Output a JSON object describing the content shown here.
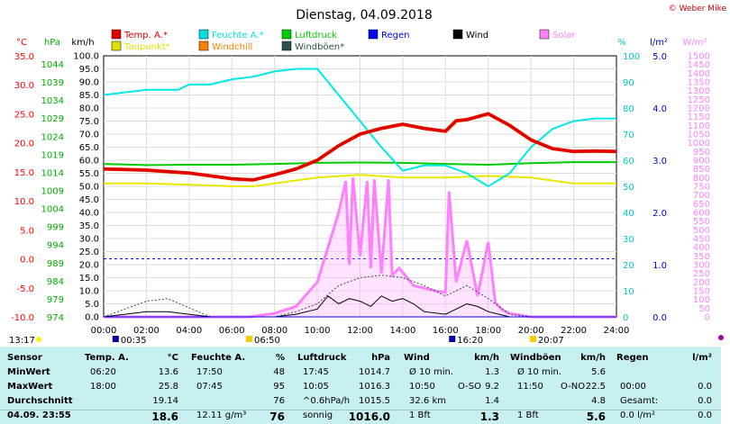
{
  "header": {
    "title": "Dienstag, 04.09.2018",
    "credit": "© Weber Mike"
  },
  "legend": [
    {
      "label": "Temp. A.*",
      "color": "#e00000"
    },
    {
      "label": "Feuchte A.*",
      "color": "#00e0e0"
    },
    {
      "label": "Luftdruck",
      "color": "#00cc00"
    },
    {
      "label": "Regen",
      "color": "#0000ff"
    },
    {
      "label": "Wind",
      "color": "#000000"
    },
    {
      "label": "Solar",
      "color": "#ff80ff"
    },
    {
      "label": "Taupunkt*",
      "color": "#e0e000"
    },
    {
      "label": "Windchill",
      "color": "#ff8000"
    },
    {
      "label": "Windböen*",
      "color": "#305050"
    }
  ],
  "axes": {
    "temp": {
      "unit": "°C",
      "ticks": [
        "35.0",
        "30.0",
        "25.0",
        "20.0",
        "15.0",
        "10.0",
        "5.0",
        "0.0",
        "-5.0",
        "-10.0"
      ],
      "color": "#ff0000"
    },
    "press": {
      "unit": "hPa",
      "ticks": [
        "1044",
        "1039",
        "1034",
        "1029",
        "1024",
        "1019",
        "1014",
        "1009",
        "1004",
        "999",
        "994",
        "989",
        "984",
        "979",
        "974"
      ],
      "color": "#00aa00"
    },
    "wind": {
      "unit": "km/h",
      "ticks": [
        "100.0",
        "95.0",
        "90.0",
        "85.0",
        "80.0",
        "75.0",
        "70.0",
        "65.0",
        "60.0",
        "55.0",
        "50.0",
        "45.0",
        "40.0",
        "35.0",
        "30.0",
        "25.0",
        "20.0",
        "15.0",
        "10.0",
        "5.0",
        "0.0"
      ],
      "color": "#000000"
    },
    "hum": {
      "unit": "%",
      "ticks": [
        "100",
        "90",
        "80",
        "70",
        "60",
        "50",
        "40",
        "30",
        "20",
        "10",
        "0"
      ],
      "color": "#00c8c8"
    },
    "rain": {
      "unit": "l/m²",
      "ticks": [
        "5.0",
        "4.0",
        "3.0",
        "2.0",
        "1.0",
        "0.0"
      ],
      "color": "#0000cc"
    },
    "solar": {
      "unit": "W/m²",
      "ticks": [
        "1500",
        "1450",
        "1400",
        "1350",
        "1300",
        "1250",
        "1200",
        "1150",
        "1100",
        "1050",
        "1000",
        "950",
        "900",
        "850",
        "800",
        "750",
        "700",
        "650",
        "600",
        "550",
        "500",
        "450",
        "400",
        "350",
        "300",
        "250",
        "200",
        "150",
        "100",
        "50",
        "0"
      ],
      "color": "#ff80ff"
    },
    "time": {
      "ticks": [
        "00:00",
        "02:00",
        "04:00",
        "06:00",
        "08:00",
        "10:00",
        "12:00",
        "14:00",
        "16:00",
        "18:00",
        "20:00",
        "22:00",
        "24:00"
      ]
    }
  },
  "markers": {
    "moonrise": "00:35",
    "sunrise": "06:50",
    "moonset": "16:20",
    "sunset": "20:07",
    "now": "13:17"
  },
  "chart_data": {
    "type": "line",
    "title": "Dienstag, 04.09.2018",
    "x_range": [
      "00:00",
      "24:00"
    ],
    "series": [
      {
        "name": "Temp. A.*",
        "unit": "°C",
        "x": [
          "00:00",
          "02:00",
          "04:00",
          "06:00",
          "07:00",
          "08:00",
          "09:00",
          "10:00",
          "11:00",
          "12:00",
          "13:00",
          "14:00",
          "15:00",
          "16:00",
          "16:30",
          "17:00",
          "18:00",
          "19:00",
          "20:00",
          "21:00",
          "22:00",
          "23:00",
          "24:00"
        ],
        "y": [
          15.5,
          15.3,
          14.8,
          13.8,
          13.6,
          14.5,
          15.5,
          17.0,
          19.5,
          21.5,
          22.5,
          23.2,
          22.5,
          22.0,
          23.8,
          24.0,
          25.0,
          23.0,
          20.5,
          19.0,
          18.5,
          18.6,
          18.5
        ]
      },
      {
        "name": "Feuchte A.*",
        "unit": "%",
        "x": [
          "00:00",
          "02:00",
          "03:30",
          "04:00",
          "05:00",
          "06:00",
          "07:00",
          "08:00",
          "09:00",
          "10:00",
          "11:00",
          "12:00",
          "13:00",
          "14:00",
          "15:00",
          "16:00",
          "17:00",
          "18:00",
          "19:00",
          "20:00",
          "21:00",
          "22:00",
          "23:00",
          "24:00"
        ],
        "y": [
          85,
          87,
          87,
          89,
          89,
          91,
          92,
          94,
          95,
          95,
          85,
          75,
          65,
          56,
          58,
          58,
          55,
          50,
          55,
          65,
          72,
          75,
          76,
          76
        ]
      },
      {
        "name": "Luftdruck",
        "unit": "hPa",
        "x": [
          "00:00",
          "02:00",
          "04:00",
          "06:00",
          "08:00",
          "10:00",
          "12:00",
          "14:00",
          "16:00",
          "18:00",
          "20:00",
          "22:00",
          "24:00"
        ],
        "y": [
          1015.0,
          1014.7,
          1014.8,
          1014.8,
          1015.0,
          1015.3,
          1015.4,
          1015.3,
          1015.0,
          1014.8,
          1015.2,
          1015.5,
          1015.5
        ]
      },
      {
        "name": "Taupunkt*",
        "unit": "°C",
        "x": [
          "00:00",
          "02:00",
          "04:00",
          "06:00",
          "07:00",
          "08:00",
          "10:00",
          "12:00",
          "14:00",
          "16:00",
          "18:00",
          "20:00",
          "22:00",
          "24:00"
        ],
        "y": [
          13.0,
          13.0,
          12.8,
          12.5,
          12.5,
          13.0,
          14.0,
          14.5,
          14.0,
          14.0,
          14.3,
          14.0,
          13.0,
          13.0
        ]
      },
      {
        "name": "Windchill",
        "unit": "°C",
        "x": [
          "00:00",
          "02:00",
          "04:00",
          "06:00",
          "07:00",
          "08:00",
          "09:00",
          "10:00",
          "11:00",
          "12:00",
          "13:00",
          "14:00",
          "15:00",
          "16:00",
          "16:30",
          "17:00",
          "18:00",
          "19:00",
          "20:00",
          "21:00",
          "22:00",
          "23:00",
          "24:00"
        ],
        "y": [
          15.5,
          15.3,
          14.8,
          13.8,
          13.6,
          14.5,
          15.5,
          17.0,
          19.5,
          21.5,
          22.5,
          23.2,
          22.5,
          22.0,
          23.8,
          24.0,
          25.0,
          23.0,
          20.5,
          19.0,
          18.5,
          18.6,
          18.5
        ]
      },
      {
        "name": "Wind",
        "unit": "km/h",
        "x": [
          "00:00",
          "01:00",
          "02:00",
          "03:00",
          "05:00",
          "08:00",
          "09:00",
          "10:00",
          "10:30",
          "11:00",
          "11:30",
          "12:00",
          "12:30",
          "13:00",
          "13:30",
          "14:00",
          "14:30",
          "15:00",
          "16:00",
          "16:30",
          "17:00",
          "17:30",
          "18:00",
          "18:30",
          "19:00",
          "20:00",
          "24:00"
        ],
        "y": [
          0,
          1,
          2,
          2,
          0,
          0,
          1,
          3,
          8,
          5,
          7,
          6,
          4,
          8,
          6,
          7,
          5,
          2,
          1,
          3,
          5,
          4,
          2,
          1,
          0,
          0,
          0
        ]
      },
      {
        "name": "Windböen*",
        "unit": "km/h",
        "x": [
          "00:00",
          "01:00",
          "02:00",
          "03:00",
          "05:00",
          "08:00",
          "09:00",
          "10:00",
          "11:00",
          "12:00",
          "13:00",
          "14:00",
          "15:00",
          "16:00",
          "17:00",
          "18:00",
          "19:00",
          "20:00",
          "24:00"
        ],
        "y": [
          0,
          3,
          6,
          7,
          0,
          0,
          2,
          5,
          12,
          15,
          16,
          15,
          12,
          8,
          12,
          7,
          1,
          0,
          0
        ]
      },
      {
        "name": "Solar",
        "unit": "W/m²",
        "x": [
          "00:00",
          "06:50",
          "08:00",
          "09:00",
          "10:00",
          "11:00",
          "11:20",
          "11:30",
          "11:40",
          "12:00",
          "12:20",
          "12:30",
          "12:40",
          "13:00",
          "13:20",
          "13:30",
          "13:50",
          "14:30",
          "15:30",
          "16:00",
          "16:10",
          "16:30",
          "17:00",
          "17:30",
          "18:00",
          "18:20",
          "18:40",
          "19:00",
          "20:00",
          "24:00"
        ],
        "y": [
          0,
          0,
          20,
          60,
          200,
          600,
          780,
          300,
          800,
          350,
          780,
          280,
          790,
          250,
          790,
          240,
          280,
          180,
          150,
          140,
          720,
          200,
          440,
          120,
          430,
          80,
          40,
          20,
          0,
          0
        ]
      },
      {
        "name": "Regen",
        "unit": "l/m²",
        "x": [
          "00:00",
          "24:00"
        ],
        "y": [
          0,
          0
        ]
      }
    ]
  },
  "stats": {
    "headers": {
      "sensor": "Sensor",
      "temp": "Temp. A.",
      "temp_unit": "°C",
      "hum": "Feuchte A.",
      "hum_unit": "%",
      "press": "Luftdruck",
      "press_unit": "hPa",
      "wind": "Wind",
      "wind_unit": "km/h",
      "gust": "Windböen",
      "gust_unit": "km/h",
      "rain": "Regen",
      "rain_unit": "l/m²"
    },
    "rows": [
      {
        "label": "MinWert",
        "temp_time": "06:20",
        "temp_val": "13.6",
        "hum_time": "17:50",
        "hum_val": "48",
        "press_time": "17:45",
        "press_val": "1014.7",
        "wind_time": "Ø 10 min.",
        "wind_val": "1.3",
        "gust_time": "Ø 10 min.",
        "gust_val": "5.6",
        "rain_time": "",
        "rain_val": ""
      },
      {
        "label": "MaxWert",
        "temp_time": "18:00",
        "temp_val": "25.8",
        "hum_time": "07:45",
        "hum_val": "95",
        "press_time": "10:05",
        "press_val": "1016.3",
        "wind_time": "10:50",
        "wind_dir": "O-SO",
        "wind_val": "9.2",
        "gust_time": "11:50",
        "gust_dir": "O-NO",
        "gust_val": "22.5",
        "rain_time": "00:00",
        "rain_val": "0.0"
      },
      {
        "label": "Durchschnitt",
        "temp_time": "",
        "temp_val": "19.14",
        "hum_time": "",
        "hum_val": "76",
        "press_time": "^0.6hPa/h",
        "press_val": "1015.5",
        "wind_time": "32.6 km",
        "wind_val": "1.4",
        "gust_time": "",
        "gust_val": "4.8",
        "rain_time": "Gesamt:",
        "rain_val": "0.0"
      },
      {
        "label": "04.09. 23:55",
        "temp_time": "",
        "temp_val": "18.6",
        "hum_time": "12.11 g/m³",
        "hum_val": "76",
        "press_time": "sonnig",
        "press_val": "1016.0",
        "wind_time": "1 Bft",
        "wind_val": "1.3",
        "gust_time": "1 Bft",
        "gust_val": "5.6",
        "rain_time": "0.0 l/m²",
        "rain_val": "0.0"
      }
    ]
  }
}
